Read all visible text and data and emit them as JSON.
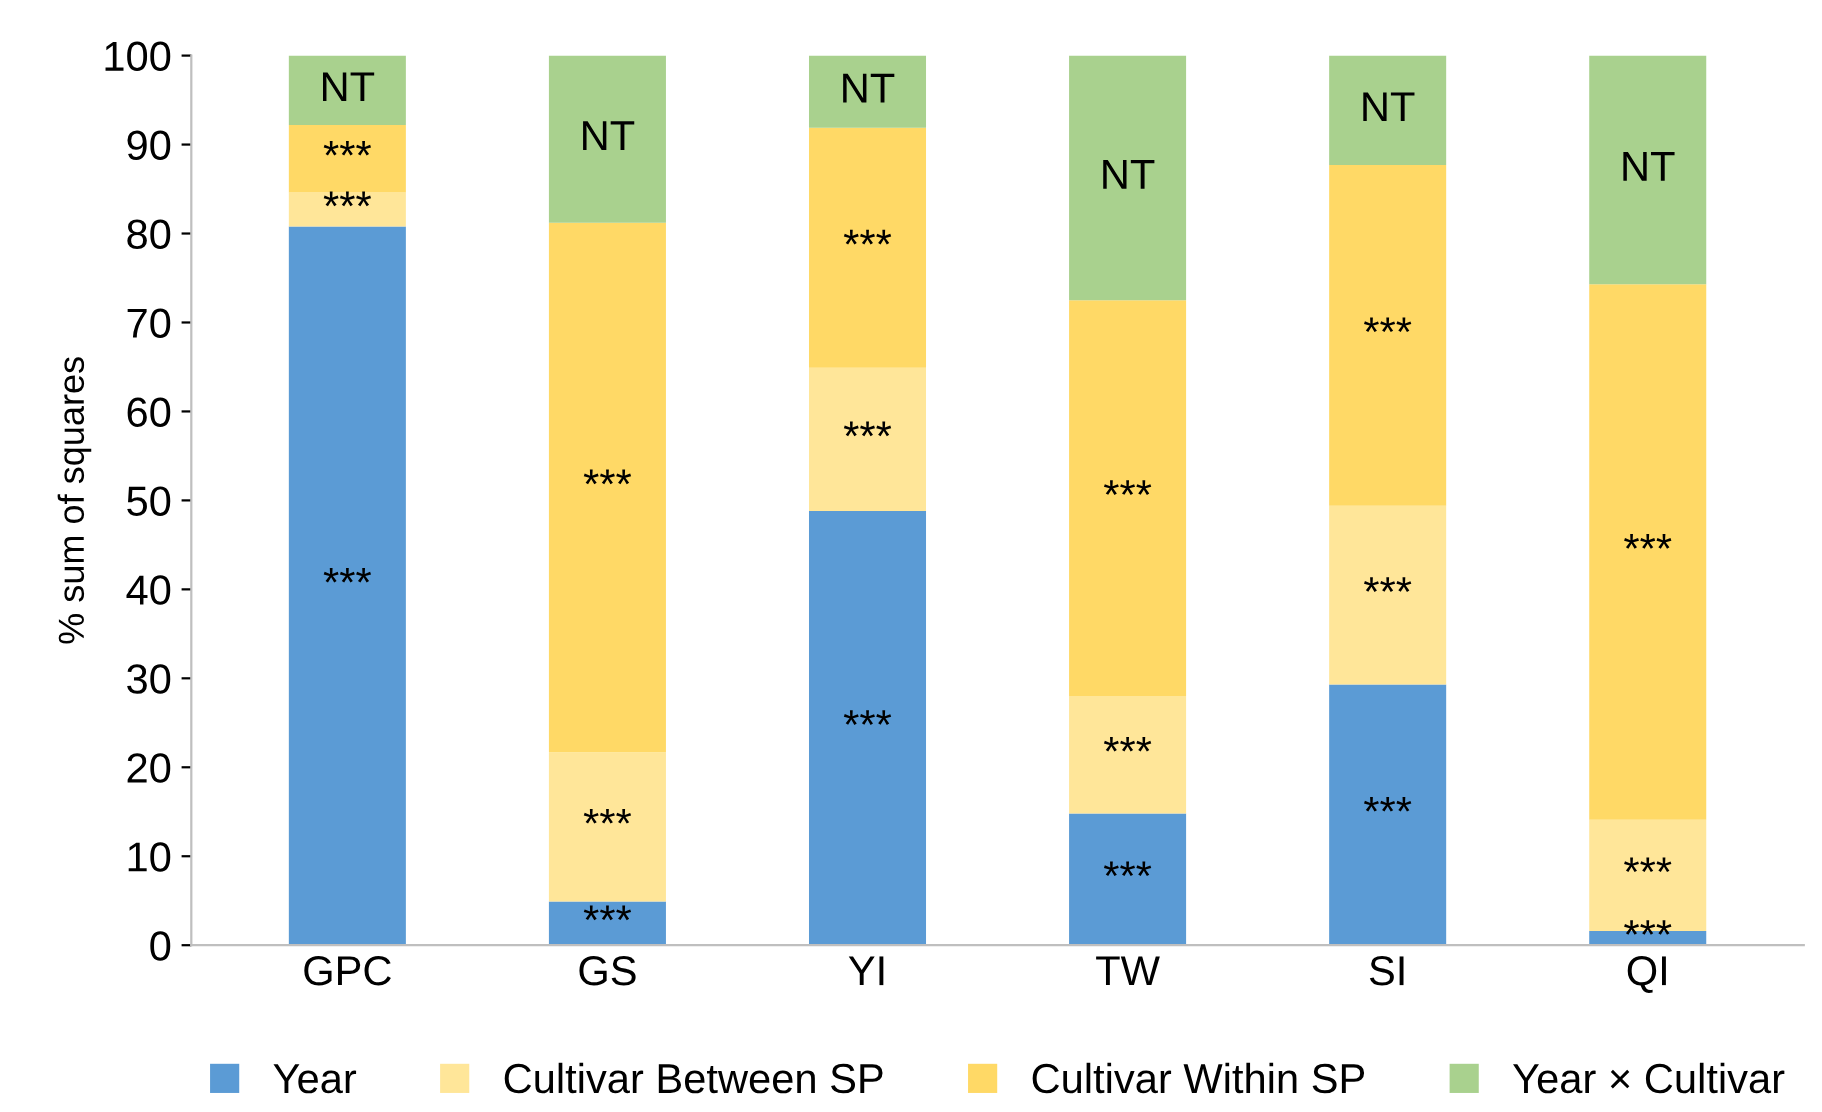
{
  "chart_data": {
    "type": "bar",
    "stacked": true,
    "ylabel": "% sum of squares",
    "categories": [
      "GPC",
      "GS",
      "YI",
      "TW",
      "SI",
      "QI"
    ],
    "ylim": [
      0,
      100
    ],
    "yticks": [
      0,
      10,
      20,
      30,
      40,
      50,
      60,
      70,
      80,
      90,
      100
    ],
    "grid": false,
    "legend": "bottom",
    "series": [
      {
        "name": "Year",
        "color": "#5b9bd5",
        "values": [
          80.8,
          4.9,
          48.8,
          14.8,
          29.3,
          1.6
        ],
        "value_labels": [
          "***",
          "***",
          "***",
          "***",
          "***",
          "***"
        ]
      },
      {
        "name": "Cultivar Between SP",
        "color": "#ffe699",
        "values": [
          3.8,
          16.8,
          16.1,
          13.2,
          20.1,
          12.5
        ],
        "value_labels": [
          "***",
          "***",
          "***",
          "***",
          "***",
          "***"
        ]
      },
      {
        "name": "Cultivar Within SP",
        "color": "#ffd966",
        "values": [
          7.6,
          59.5,
          27.0,
          44.5,
          38.3,
          60.2
        ],
        "value_labels": [
          "***",
          "***",
          "***",
          "***",
          "***",
          "***"
        ]
      },
      {
        "name": "Year × Cultivar",
        "color": "#a9d18e",
        "values": [
          7.8,
          18.8,
          8.1,
          27.5,
          12.3,
          25.7
        ],
        "value_labels": [
          "NT",
          "NT",
          "NT",
          "NT",
          "NT",
          "NT"
        ]
      }
    ]
  }
}
